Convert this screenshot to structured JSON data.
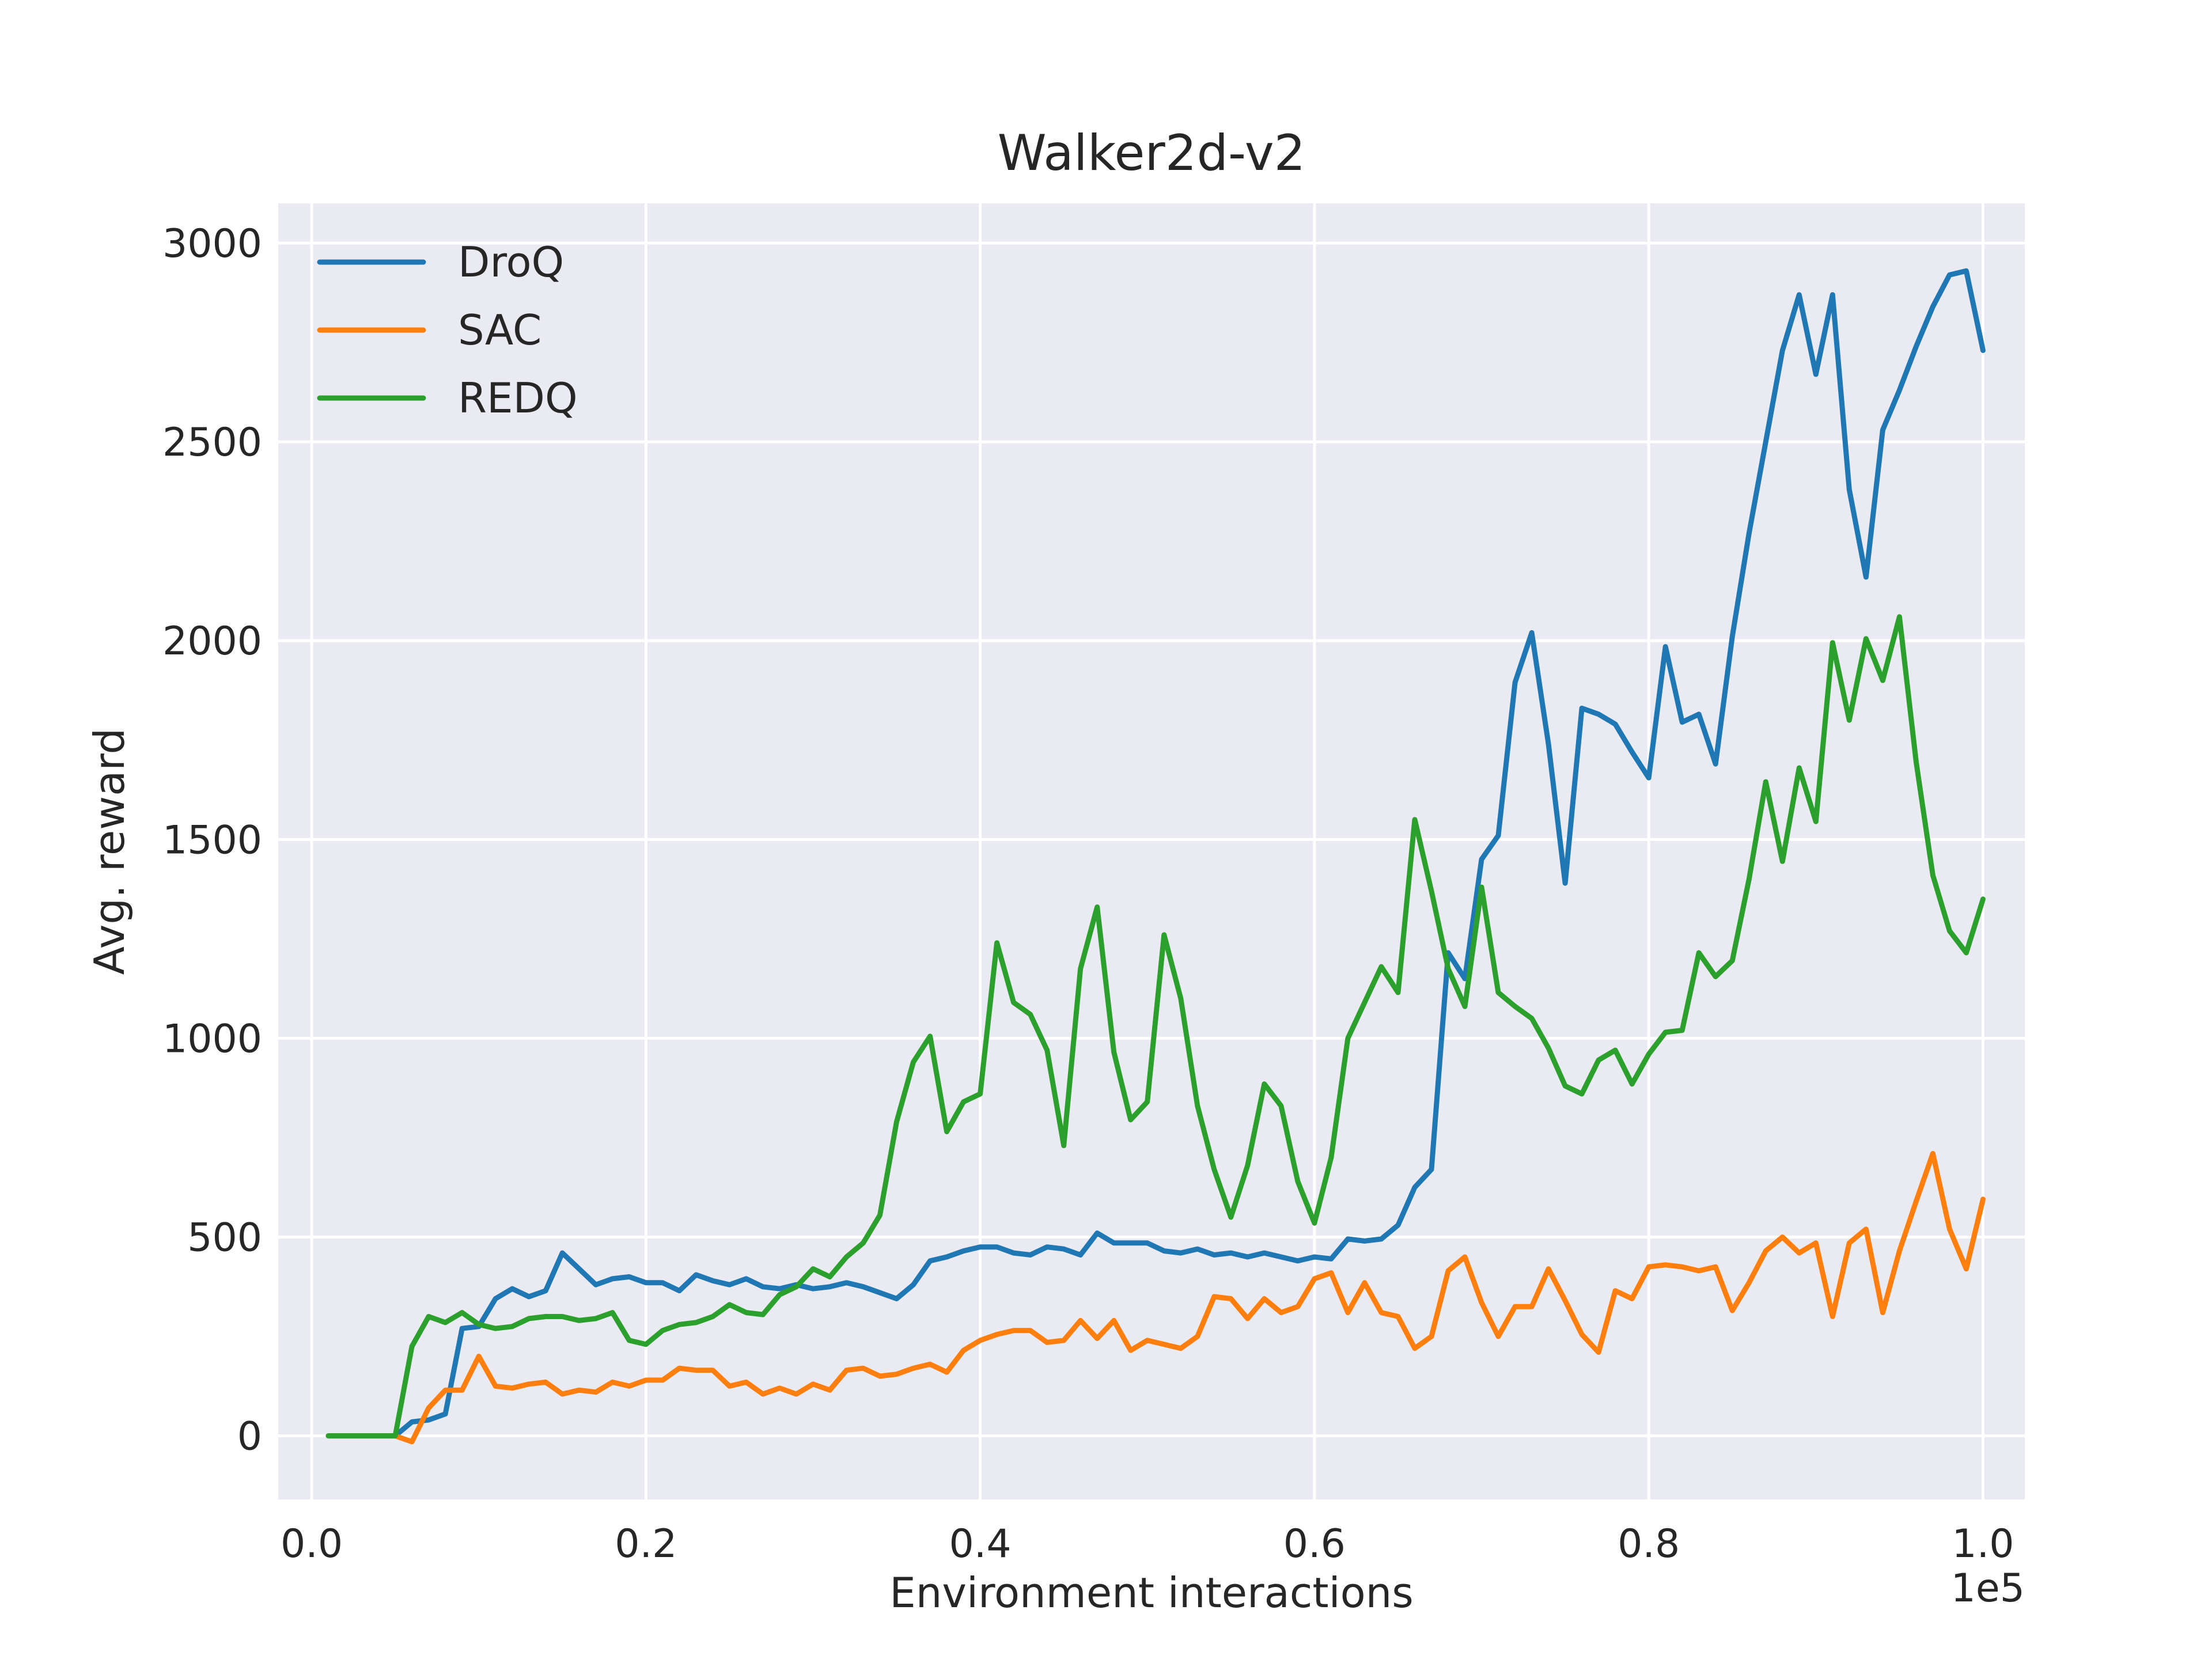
{
  "chart_data": {
    "type": "line",
    "title": "Walker2d-v2",
    "xlabel": "Environment interactions",
    "ylabel": "Avg. reward",
    "x_offset_label": "1e5",
    "xlim": [
      -0.02,
      1.025
    ],
    "ylim": [
      -160,
      3100
    ],
    "x_ticks": [
      0.0,
      0.2,
      0.4,
      0.6,
      0.8,
      1.0
    ],
    "x_tick_labels": [
      "0.0",
      "0.2",
      "0.4",
      "0.6",
      "0.8",
      "1.0"
    ],
    "y_ticks": [
      0,
      500,
      1000,
      1500,
      2000,
      2500,
      3000
    ],
    "y_tick_labels": [
      "0",
      "500",
      "1000",
      "1500",
      "2000",
      "2500",
      "3000"
    ],
    "grid": true,
    "background": "#eaeaf2",
    "legend_position": "top-left",
    "x": [
      0.01,
      0.02,
      0.03,
      0.04,
      0.05,
      0.06,
      0.07,
      0.08,
      0.09,
      0.1,
      0.11,
      0.12,
      0.13,
      0.14,
      0.15,
      0.16,
      0.17,
      0.18,
      0.19,
      0.2,
      0.21,
      0.22,
      0.23,
      0.24,
      0.25,
      0.26,
      0.27,
      0.28,
      0.29,
      0.3,
      0.31,
      0.32,
      0.33,
      0.34,
      0.35,
      0.36,
      0.37,
      0.38,
      0.39,
      0.4,
      0.41,
      0.42,
      0.43,
      0.44,
      0.45,
      0.46,
      0.47,
      0.48,
      0.49,
      0.5,
      0.51,
      0.52,
      0.53,
      0.54,
      0.55,
      0.56,
      0.57,
      0.58,
      0.59,
      0.6,
      0.61,
      0.62,
      0.63,
      0.64,
      0.65,
      0.66,
      0.67,
      0.68,
      0.69,
      0.7,
      0.71,
      0.72,
      0.73,
      0.74,
      0.75,
      0.76,
      0.77,
      0.78,
      0.79,
      0.8,
      0.81,
      0.82,
      0.83,
      0.84,
      0.85,
      0.86,
      0.87,
      0.88,
      0.89,
      0.9,
      0.91,
      0.92,
      0.93,
      0.94,
      0.95,
      0.96,
      0.97,
      0.98,
      0.99,
      1.0
    ],
    "series": [
      {
        "name": "DroQ",
        "color": "#1f77b4",
        "values": [
          0,
          0,
          0,
          0,
          0,
          35,
          40,
          55,
          270,
          275,
          345,
          370,
          350,
          365,
          460,
          420,
          380,
          395,
          400,
          385,
          385,
          365,
          405,
          390,
          380,
          395,
          375,
          370,
          380,
          370,
          375,
          385,
          375,
          360,
          345,
          380,
          440,
          450,
          465,
          475,
          475,
          460,
          455,
          475,
          470,
          455,
          510,
          485,
          485,
          485,
          465,
          460,
          470,
          455,
          460,
          450,
          460,
          450,
          440,
          450,
          445,
          495,
          490,
          495,
          530,
          625,
          670,
          1215,
          1150,
          1450,
          1510,
          1895,
          2020,
          1740,
          1390,
          1830,
          1815,
          1790,
          1720,
          1655,
          1985,
          1795,
          1815,
          1690,
          2010,
          2270,
          2500,
          2730,
          2870,
          2670,
          2870,
          2380,
          2160,
          2530,
          2630,
          2740,
          2840,
          2920,
          2930,
          2730
        ]
      },
      {
        "name": "SAC",
        "color": "#ff7f0e",
        "values": [
          0,
          0,
          0,
          0,
          0,
          -15,
          70,
          115,
          115,
          200,
          125,
          120,
          130,
          135,
          105,
          115,
          110,
          135,
          125,
          140,
          140,
          170,
          165,
          165,
          125,
          135,
          105,
          120,
          105,
          130,
          115,
          165,
          170,
          150,
          155,
          170,
          180,
          160,
          215,
          240,
          255,
          265,
          265,
          235,
          240,
          290,
          245,
          290,
          215,
          240,
          230,
          220,
          250,
          350,
          345,
          295,
          345,
          310,
          325,
          395,
          410,
          310,
          385,
          310,
          300,
          220,
          250,
          415,
          450,
          335,
          250,
          325,
          325,
          420,
          340,
          255,
          210,
          365,
          345,
          425,
          430,
          425,
          415,
          425,
          315,
          385,
          465,
          500,
          460,
          485,
          300,
          485,
          520,
          310,
          465,
          590,
          710,
          520,
          420,
          595
        ]
      },
      {
        "name": "REDQ",
        "color": "#2ca02c",
        "values": [
          0,
          0,
          0,
          0,
          0,
          225,
          300,
          285,
          310,
          280,
          270,
          275,
          295,
          300,
          300,
          290,
          295,
          310,
          240,
          230,
          265,
          280,
          285,
          300,
          330,
          310,
          305,
          355,
          375,
          420,
          400,
          450,
          485,
          555,
          790,
          940,
          1005,
          765,
          840,
          860,
          1240,
          1090,
          1060,
          970,
          730,
          1175,
          1330,
          965,
          795,
          840,
          1260,
          1100,
          830,
          670,
          550,
          680,
          885,
          830,
          640,
          535,
          700,
          1000,
          1090,
          1180,
          1115,
          1550,
          1370,
          1175,
          1080,
          1380,
          1115,
          1080,
          1050,
          975,
          880,
          860,
          945,
          970,
          885,
          960,
          1015,
          1020,
          1215,
          1155,
          1195,
          1400,
          1645,
          1445,
          1680,
          1545,
          1995,
          1800,
          2005,
          1900,
          2060,
          1695,
          1410,
          1270,
          1215,
          1350
        ]
      }
    ]
  }
}
